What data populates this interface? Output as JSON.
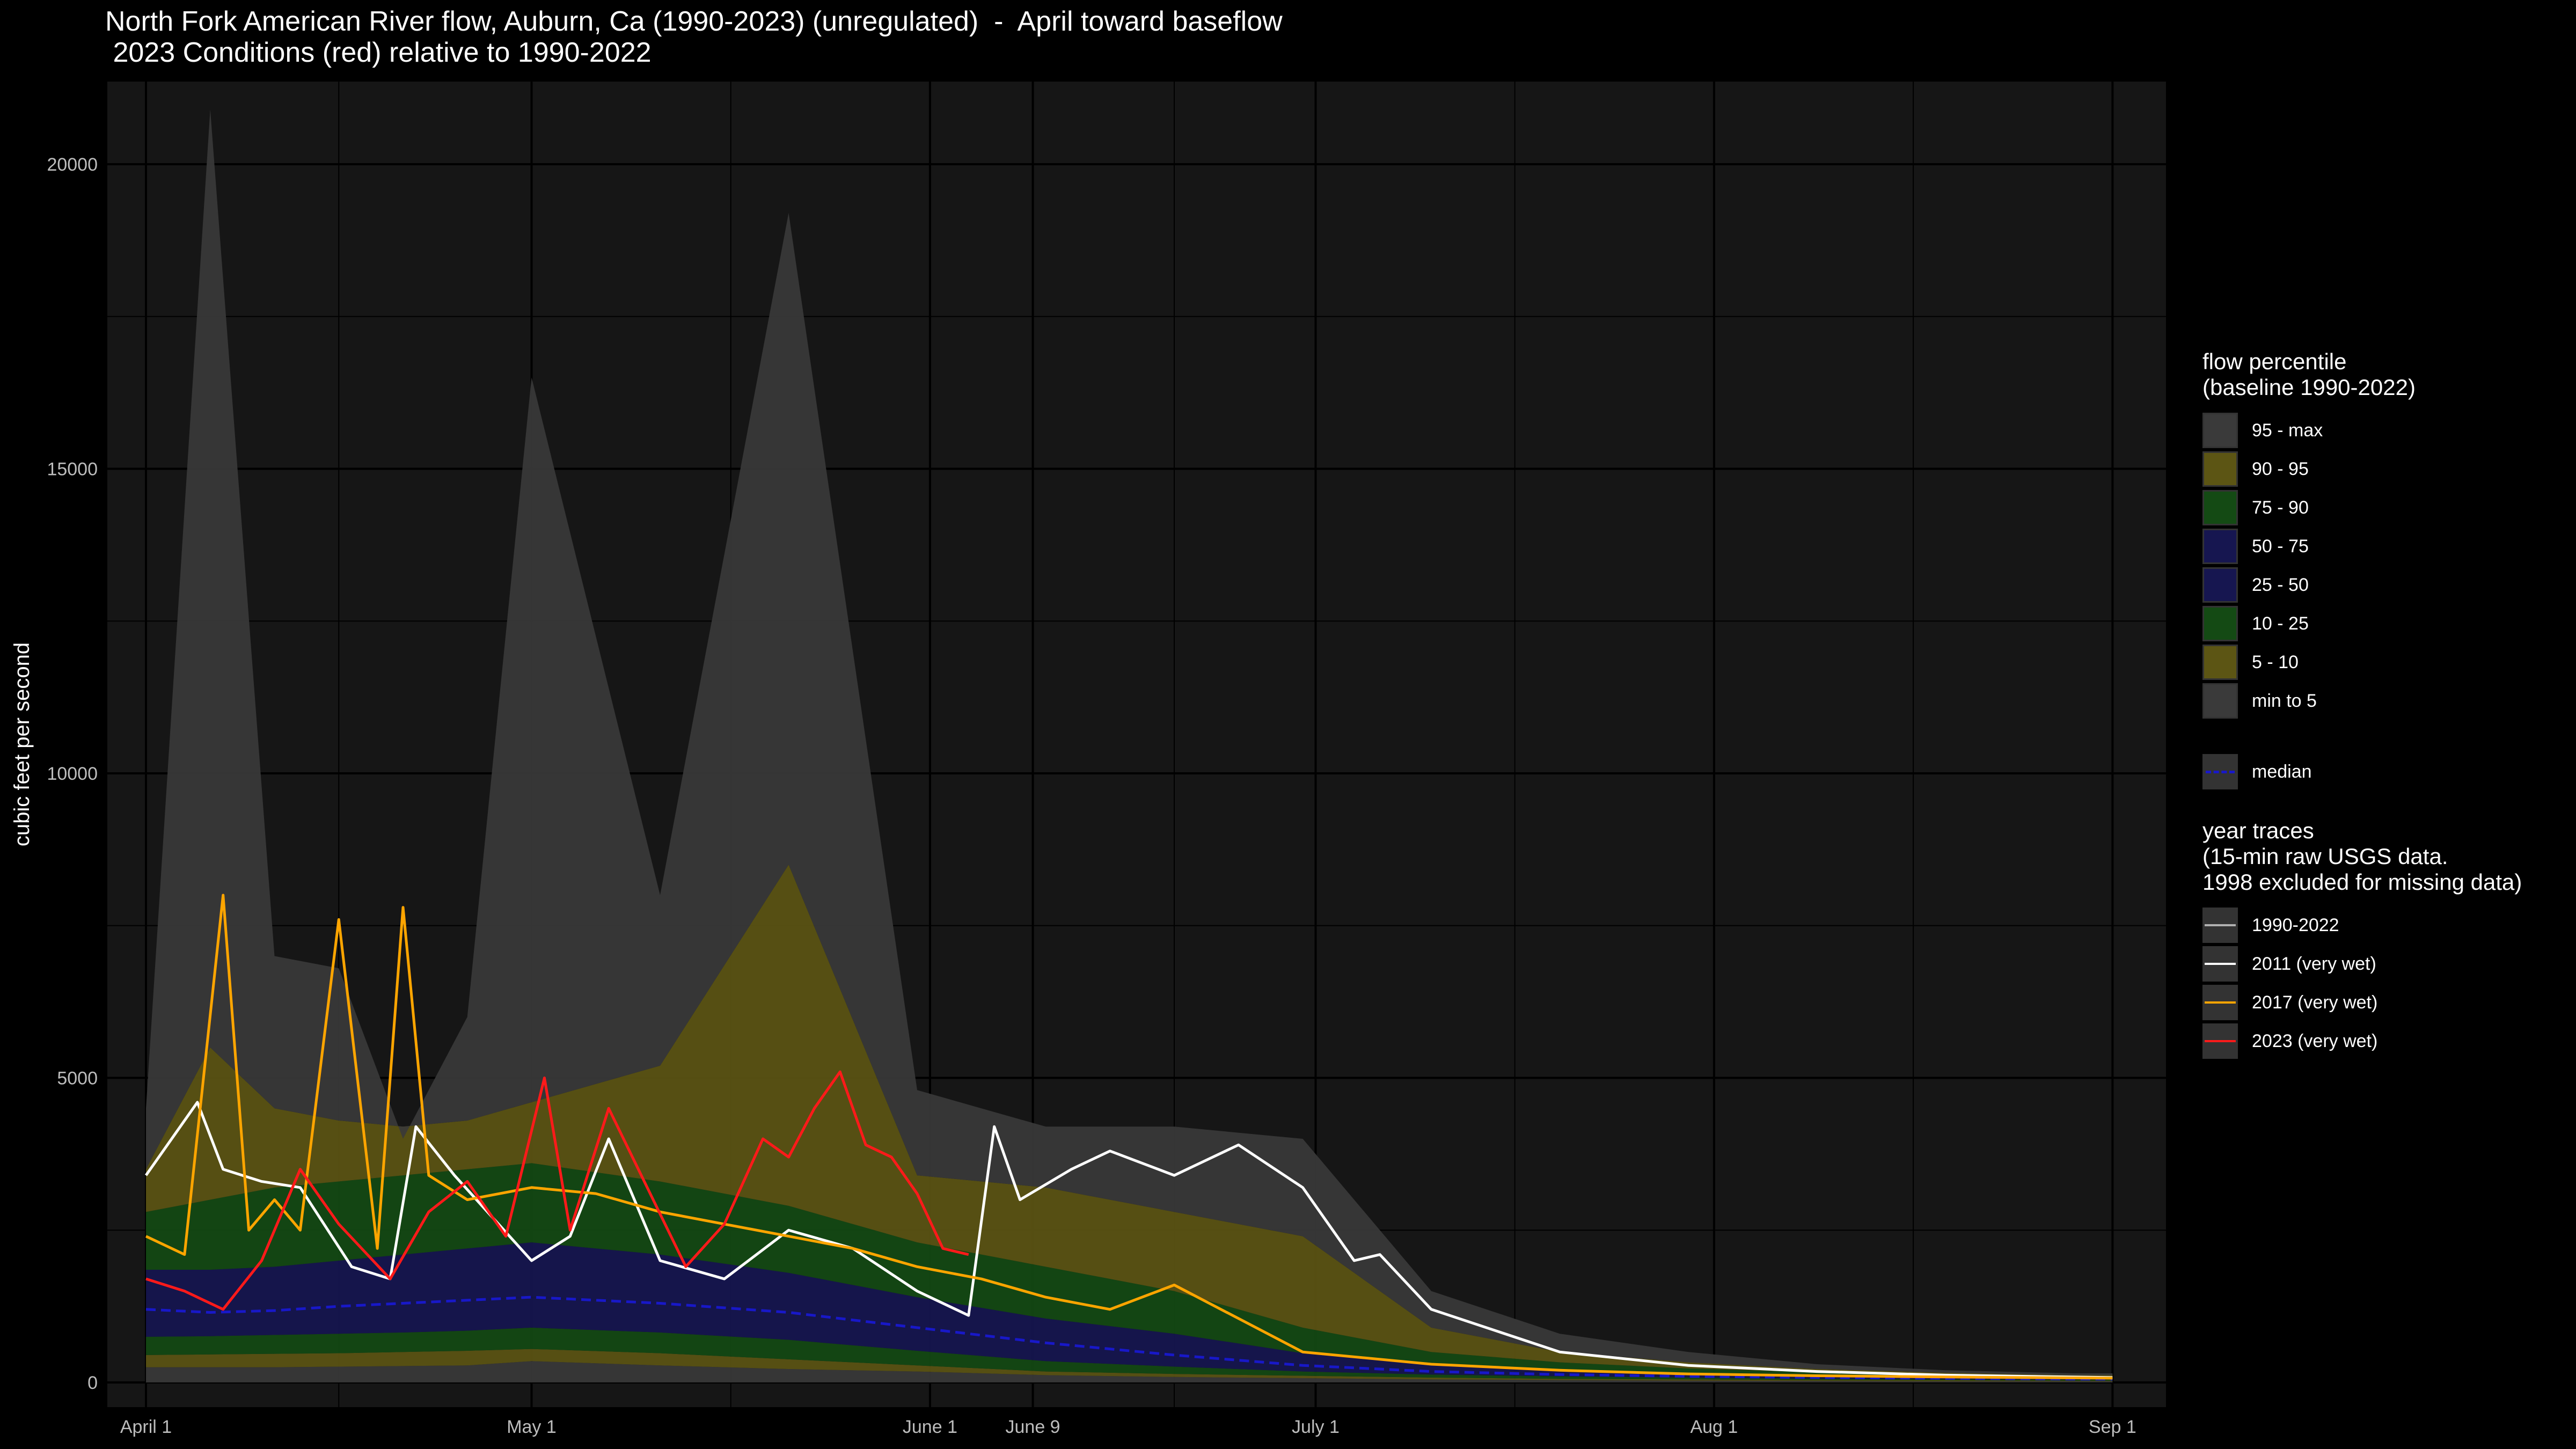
{
  "title_line1": "North Fork American River flow, Auburn, Ca (1990-2023) (unregulated)  -  April toward baseflow",
  "title_line2": " 2023 Conditions (red) relative to 1990-2022",
  "chart_data": {
    "type": "area",
    "ylabel": "cubic feet per second",
    "xlabel": "",
    "ylim": [
      0,
      21000
    ],
    "y_ticks": [
      0,
      5000,
      10000,
      15000,
      20000
    ],
    "x_ticks": [
      {
        "label": "April 1",
        "day": 0
      },
      {
        "label": "May 1",
        "day": 30
      },
      {
        "label": "June 1",
        "day": 61
      },
      {
        "label": "June 9",
        "day": 69
      },
      {
        "label": "July 1",
        "day": 91
      },
      {
        "label": "Aug 1",
        "day": 122
      },
      {
        "label": "Sep 1",
        "day": 153
      }
    ],
    "grid": true,
    "legend_position": "right",
    "bands": {
      "days": [
        0,
        5,
        10,
        15,
        20,
        25,
        30,
        40,
        50,
        60,
        70,
        80,
        90,
        100,
        110,
        120,
        130,
        140,
        150,
        153
      ],
      "p5": [
        250,
        250,
        250,
        260,
        270,
        280,
        350,
        280,
        220,
        180,
        120,
        90,
        70,
        50,
        40,
        30,
        25,
        20,
        20,
        20
      ],
      "p10": [
        450,
        460,
        470,
        480,
        500,
        520,
        550,
        480,
        380,
        280,
        180,
        140,
        110,
        80,
        60,
        50,
        40,
        35,
        30,
        30
      ],
      "p25": [
        750,
        760,
        780,
        800,
        820,
        850,
        900,
        820,
        700,
        520,
        350,
        260,
        180,
        130,
        100,
        80,
        60,
        50,
        45,
        45
      ],
      "p50": [
        1200,
        1150,
        1180,
        1250,
        1300,
        1350,
        1400,
        1300,
        1150,
        900,
        650,
        450,
        280,
        180,
        130,
        100,
        80,
        65,
        55,
        55
      ],
      "p75": [
        1850,
        1850,
        1900,
        2000,
        2100,
        2200,
        2300,
        2100,
        1800,
        1400,
        1050,
        800,
        480,
        280,
        190,
        140,
        110,
        90,
        75,
        75
      ],
      "p90": [
        2800,
        3000,
        3200,
        3300,
        3400,
        3500,
        3600,
        3300,
        2900,
        2300,
        1900,
        1500,
        900,
        500,
        330,
        230,
        170,
        130,
        100,
        100
      ],
      "p95": [
        3500,
        5500,
        4500,
        4300,
        4200,
        4300,
        4600,
        5200,
        8500,
        3400,
        3200,
        2800,
        2400,
        900,
        500,
        330,
        220,
        160,
        120,
        120
      ],
      "max": [
        4500,
        20900,
        7000,
        6800,
        4000,
        6000,
        16500,
        8000,
        19200,
        4800,
        4200,
        4200,
        4000,
        1500,
        800,
        500,
        300,
        200,
        150,
        150
      ]
    },
    "median": {
      "days": [
        0,
        5,
        10,
        15,
        20,
        25,
        30,
        40,
        50,
        60,
        70,
        80,
        90,
        100,
        110,
        120,
        130,
        140,
        150,
        153
      ],
      "values": [
        1200,
        1150,
        1180,
        1250,
        1300,
        1350,
        1400,
        1300,
        1150,
        900,
        650,
        450,
        280,
        180,
        130,
        100,
        80,
        65,
        55,
        55
      ]
    },
    "series": [
      {
        "name": "2011 (very wet)",
        "color": "#ffffff",
        "days": [
          0,
          2,
          4,
          6,
          9,
          12,
          16,
          19,
          21,
          24,
          27,
          30,
          33,
          36,
          40,
          45,
          50,
          55,
          60,
          64,
          66,
          68,
          72,
          75,
          80,
          85,
          90,
          94,
          96,
          100,
          110,
          120,
          130,
          140,
          153
        ],
        "values": [
          3400,
          4000,
          4600,
          3500,
          3300,
          3200,
          1900,
          1700,
          4200,
          3400,
          2700,
          2000,
          2400,
          4000,
          2000,
          1700,
          2500,
          2200,
          1500,
          1100,
          4200,
          3000,
          3500,
          3800,
          3400,
          3900,
          3200,
          2000,
          2100,
          1200,
          500,
          280,
          180,
          120,
          80
        ]
      },
      {
        "name": "2017 (very wet)",
        "color": "#ffa500",
        "days": [
          0,
          3,
          6,
          8,
          10,
          12,
          15,
          18,
          20,
          22,
          25,
          30,
          35,
          40,
          45,
          50,
          55,
          60,
          65,
          70,
          75,
          80,
          90,
          100,
          110,
          120,
          130,
          140,
          153
        ],
        "values": [
          2400,
          2100,
          8000,
          2500,
          3000,
          2500,
          7600,
          2200,
          7800,
          3400,
          3000,
          3200,
          3100,
          2800,
          2600,
          2400,
          2200,
          1900,
          1700,
          1400,
          1200,
          1600,
          500,
          300,
          200,
          140,
          110,
          90,
          70
        ]
      },
      {
        "name": "2023 (very wet)",
        "color": "#ff1a1a",
        "days": [
          0,
          3,
          6,
          9,
          12,
          15,
          19,
          22,
          25,
          28,
          31,
          33,
          36,
          39,
          42,
          45,
          48,
          50,
          52,
          54,
          56,
          58,
          60,
          62,
          64
        ],
        "values": [
          1700,
          1500,
          1200,
          2000,
          3500,
          2600,
          1700,
          2800,
          3300,
          2400,
          5000,
          2500,
          4500,
          3200,
          1900,
          2600,
          4000,
          3700,
          4500,
          5100,
          3900,
          3700,
          3100,
          2200,
          2100
        ]
      }
    ],
    "legend": {
      "percentile_title": "flow percentile\n(baseline 1990-2022)",
      "bands": [
        {
          "label": "95 - max",
          "color": "#3a3a3a"
        },
        {
          "label": "90 - 95",
          "color": "#5c5514"
        },
        {
          "label": "75 - 90",
          "color": "#144a14"
        },
        {
          "label": "50 - 75",
          "color": "#161650"
        },
        {
          "label": "25 - 50",
          "color": "#161650"
        },
        {
          "label": "10 - 25",
          "color": "#144a14"
        },
        {
          "label": "5 - 10",
          "color": "#5c5514"
        },
        {
          "label": "min to 5",
          "color": "#3a3a3a"
        }
      ],
      "median_label": "median",
      "median_color": "#1818c8",
      "traces_title": "year traces\n(15-min raw USGS data.\n1998 excluded for missing data)",
      "traces": [
        {
          "label": "1990-2022",
          "color": "#b0b0b0"
        },
        {
          "label": "2011 (very wet)",
          "color": "#ffffff"
        },
        {
          "label": "2017 (very wet)",
          "color": "#ffa500"
        },
        {
          "label": "2023 (very wet)",
          "color": "#ff1a1a"
        }
      ]
    }
  }
}
